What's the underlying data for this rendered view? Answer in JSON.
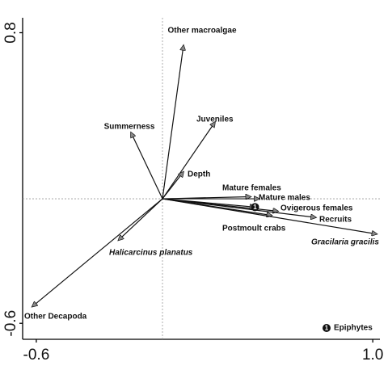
{
  "chart_data": {
    "type": "biplot",
    "xlim": [
      -0.665,
      1.034
    ],
    "ylim": [
      -0.677,
      0.872
    ],
    "xticks": [
      -0.6,
      {
        "value": 1,
        "label": "1.0"
      }
    ],
    "yticks": [
      -0.6,
      0.8
    ],
    "origin_lines": true,
    "vectors": [
      {
        "name": "Other macroalgae",
        "x": 0.1,
        "y": 0.74
      },
      {
        "name": "Summerness",
        "x": -0.15,
        "y": 0.32
      },
      {
        "name": "Juveniles",
        "x": 0.25,
        "y": 0.37
      },
      {
        "name": "Depth",
        "x": 0.1,
        "y": 0.13
      },
      {
        "name": "Mature females",
        "x": 0.42,
        "y": 0.01
      },
      {
        "name": "Mature males",
        "x": 0.46,
        "y": 0.0
      },
      {
        "name": "Ovigerous females",
        "x": 0.55,
        "y": -0.06
      },
      {
        "name": "Epiphytes",
        "marker": "1",
        "x": 0.44,
        "y": -0.04
      },
      {
        "name": "Recruits",
        "x": 0.73,
        "y": -0.09
      },
      {
        "name": "Postmoult crabs",
        "x": 0.52,
        "y": -0.08
      },
      {
        "name": "Gracilaria gracilis",
        "italic": true,
        "x": 1.02,
        "y": -0.17
      },
      {
        "name": "Halicarcinus planatus",
        "italic": true,
        "x": -0.21,
        "y": -0.2
      },
      {
        "name": "Other Decapoda",
        "x": -0.62,
        "y": -0.52
      }
    ]
  }
}
